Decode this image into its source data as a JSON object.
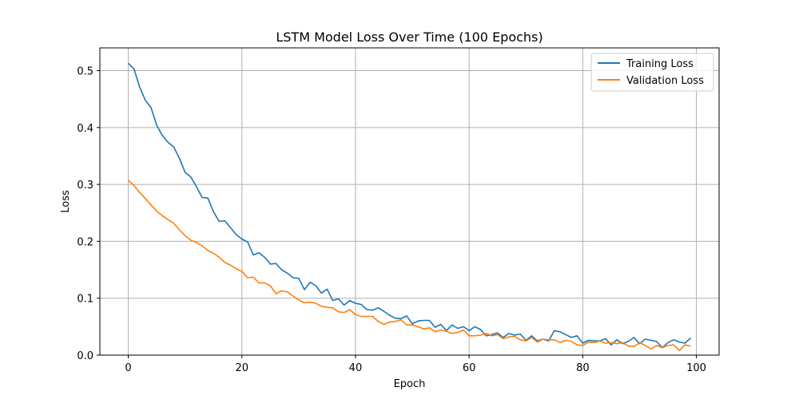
{
  "chart_data": {
    "type": "line",
    "title": "LSTM Model Loss Over Time (100 Epochs)",
    "xlabel": "Epoch",
    "ylabel": "Loss",
    "xlim": [
      -5,
      104
    ],
    "ylim": [
      0,
      0.54
    ],
    "xticks": [
      0,
      20,
      40,
      60,
      80,
      100
    ],
    "xtick_labels": [
      "0",
      "20",
      "40",
      "60",
      "80",
      "100"
    ],
    "yticks": [
      0.0,
      0.1,
      0.2,
      0.3,
      0.4,
      0.5
    ],
    "ytick_labels": [
      "0.0",
      "0.1",
      "0.2",
      "0.3",
      "0.4",
      "0.5"
    ],
    "grid": true,
    "legend_position": "top-right",
    "x_start": 0,
    "series": [
      {
        "name": "Training Loss",
        "color": "#1f77b4",
        "values": [
          0.513,
          0.503,
          0.471,
          0.448,
          0.435,
          0.404,
          0.386,
          0.374,
          0.366,
          0.346,
          0.321,
          0.313,
          0.296,
          0.277,
          0.276,
          0.252,
          0.235,
          0.236,
          0.224,
          0.212,
          0.204,
          0.199,
          0.176,
          0.18,
          0.172,
          0.16,
          0.161,
          0.15,
          0.144,
          0.136,
          0.135,
          0.115,
          0.128,
          0.122,
          0.109,
          0.116,
          0.096,
          0.099,
          0.088,
          0.096,
          0.091,
          0.089,
          0.08,
          0.079,
          0.083,
          0.077,
          0.07,
          0.065,
          0.064,
          0.069,
          0.055,
          0.06,
          0.061,
          0.061,
          0.049,
          0.054,
          0.043,
          0.053,
          0.047,
          0.05,
          0.043,
          0.05,
          0.045,
          0.034,
          0.036,
          0.039,
          0.031,
          0.038,
          0.035,
          0.037,
          0.026,
          0.034,
          0.025,
          0.028,
          0.025,
          0.043,
          0.041,
          0.036,
          0.031,
          0.034,
          0.021,
          0.026,
          0.025,
          0.025,
          0.029,
          0.018,
          0.027,
          0.02,
          0.024,
          0.031,
          0.02,
          0.028,
          0.026,
          0.024,
          0.013,
          0.022,
          0.027,
          0.023,
          0.021,
          0.03
        ]
      },
      {
        "name": "Validation Loss",
        "color": "#ff7f0e",
        "values": [
          0.307,
          0.298,
          0.286,
          0.275,
          0.264,
          0.253,
          0.245,
          0.238,
          0.232,
          0.22,
          0.21,
          0.202,
          0.198,
          0.192,
          0.184,
          0.179,
          0.172,
          0.163,
          0.158,
          0.152,
          0.147,
          0.136,
          0.137,
          0.127,
          0.127,
          0.122,
          0.108,
          0.113,
          0.111,
          0.104,
          0.097,
          0.092,
          0.093,
          0.091,
          0.086,
          0.084,
          0.083,
          0.076,
          0.075,
          0.08,
          0.071,
          0.068,
          0.068,
          0.068,
          0.059,
          0.054,
          0.058,
          0.059,
          0.062,
          0.053,
          0.053,
          0.05,
          0.046,
          0.048,
          0.041,
          0.044,
          0.042,
          0.038,
          0.04,
          0.044,
          0.034,
          0.034,
          0.035,
          0.038,
          0.034,
          0.036,
          0.029,
          0.032,
          0.033,
          0.027,
          0.025,
          0.031,
          0.023,
          0.028,
          0.027,
          0.027,
          0.022,
          0.026,
          0.024,
          0.018,
          0.017,
          0.023,
          0.022,
          0.025,
          0.021,
          0.022,
          0.02,
          0.022,
          0.016,
          0.015,
          0.022,
          0.017,
          0.011,
          0.017,
          0.013,
          0.017,
          0.018,
          0.008,
          0.018,
          0.016
        ]
      }
    ]
  }
}
